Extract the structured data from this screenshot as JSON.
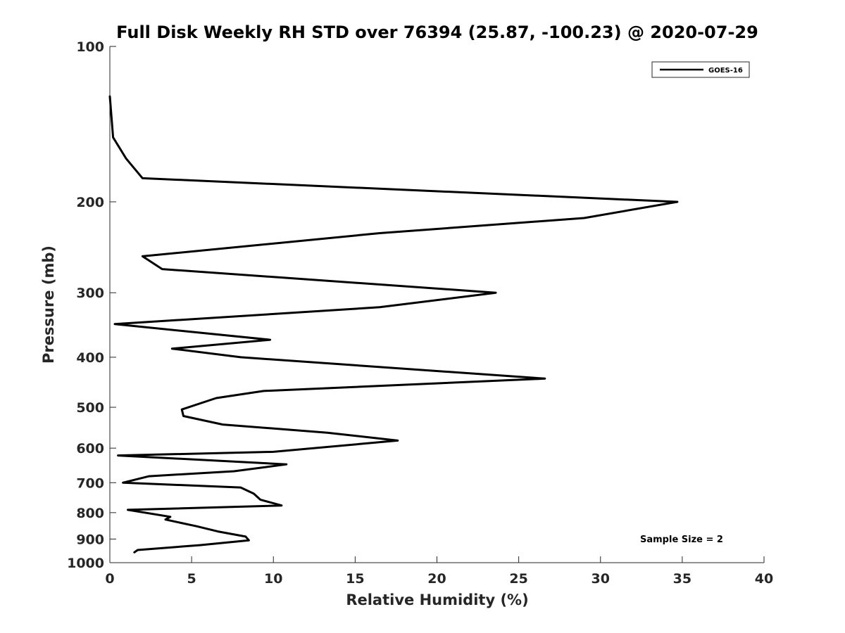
{
  "chart_data": {
    "type": "line",
    "title": "Full Disk Weekly RH STD over 76394 (25.87, -100.23) @ 2020-07-29",
    "xlabel": "Relative Humidity (%)",
    "ylabel": "Pressure (mb)",
    "xlim": [
      0,
      40
    ],
    "ylim": [
      100,
      1000
    ],
    "y_scale": "log",
    "y_reversed": true,
    "x_ticks": [
      0,
      5,
      10,
      15,
      20,
      25,
      30,
      35,
      40
    ],
    "y_ticks": [
      100,
      200,
      300,
      400,
      500,
      600,
      700,
      800,
      900,
      1000
    ],
    "grid": false,
    "legend_position": "top-right",
    "series": [
      {
        "name": "GOES-16",
        "color": "#000000",
        "points": [
          [
            0.0,
            125
          ],
          [
            0.2,
            150
          ],
          [
            1.0,
            165
          ],
          [
            2.0,
            180
          ],
          [
            34.7,
            200
          ],
          [
            29.0,
            215
          ],
          [
            16.5,
            230
          ],
          [
            2.0,
            255
          ],
          [
            3.2,
            270
          ],
          [
            23.6,
            300
          ],
          [
            16.5,
            320
          ],
          [
            0.3,
            345
          ],
          [
            9.8,
            370
          ],
          [
            3.8,
            385
          ],
          [
            8.0,
            400
          ],
          [
            26.6,
            440
          ],
          [
            9.4,
            465
          ],
          [
            6.5,
            480
          ],
          [
            4.4,
            505
          ],
          [
            4.5,
            520
          ],
          [
            6.9,
            540
          ],
          [
            13.3,
            560
          ],
          [
            17.6,
            580
          ],
          [
            10.0,
            610
          ],
          [
            0.5,
            620
          ],
          [
            10.8,
            645
          ],
          [
            7.6,
            665
          ],
          [
            2.4,
            680
          ],
          [
            0.8,
            700
          ],
          [
            8.0,
            715
          ],
          [
            8.8,
            735
          ],
          [
            9.2,
            755
          ],
          [
            10.5,
            775
          ],
          [
            1.1,
            790
          ],
          [
            3.7,
            815
          ],
          [
            3.4,
            825
          ],
          [
            5.3,
            850
          ],
          [
            6.6,
            870
          ],
          [
            8.3,
            890
          ],
          [
            8.5,
            905
          ],
          [
            5.5,
            925
          ],
          [
            1.7,
            945
          ],
          [
            1.5,
            955
          ]
        ]
      }
    ],
    "annotations": [
      "Sample Size = 2"
    ]
  }
}
